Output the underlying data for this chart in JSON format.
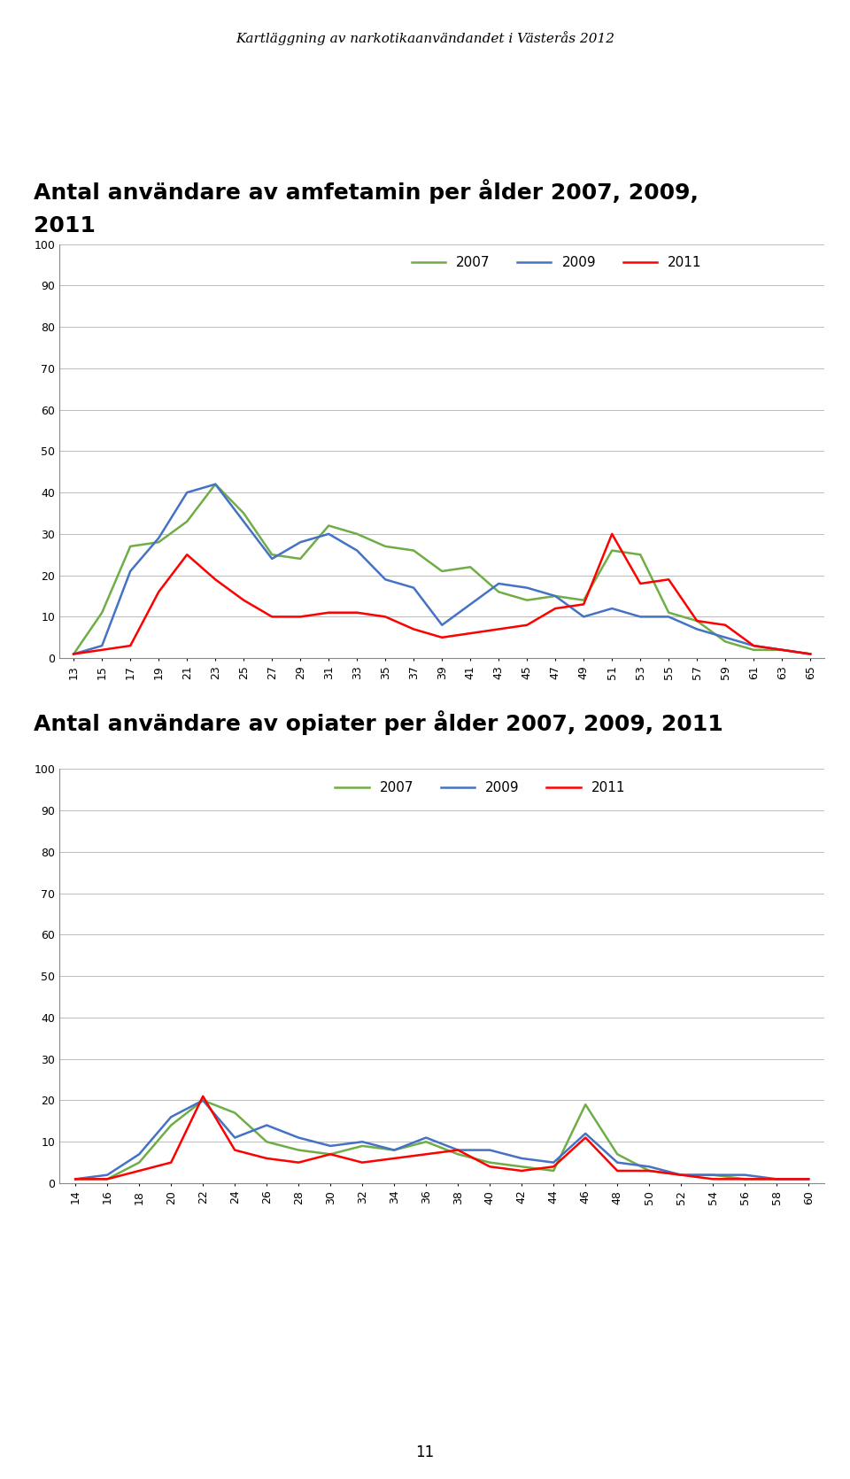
{
  "page_title": "Kartläggning av narkotikaanvändandet i Västerås 2012",
  "page_number": "11",
  "chart1": {
    "title_line1": "Antal användare av amfetamin per ålder 2007, 2009,",
    "title_line2": "2011",
    "ages": [
      13,
      15,
      17,
      19,
      21,
      23,
      25,
      27,
      29,
      31,
      33,
      35,
      37,
      39,
      41,
      43,
      45,
      47,
      49,
      51,
      53,
      55,
      57,
      59,
      61,
      63,
      65
    ],
    "y2007": [
      1,
      11,
      27,
      28,
      33,
      42,
      35,
      25,
      24,
      32,
      30,
      27,
      26,
      21,
      22,
      16,
      14,
      15,
      14,
      26,
      25,
      11,
      9,
      4,
      2,
      2,
      1
    ],
    "y2009": [
      1,
      3,
      21,
      29,
      40,
      42,
      33,
      24,
      28,
      30,
      26,
      19,
      17,
      8,
      13,
      18,
      17,
      15,
      10,
      12,
      10,
      10,
      7,
      5,
      3,
      2,
      1
    ],
    "y2011": [
      1,
      2,
      3,
      16,
      25,
      19,
      14,
      10,
      10,
      11,
      11,
      10,
      7,
      5,
      6,
      7,
      8,
      12,
      13,
      30,
      18,
      19,
      9,
      8,
      3,
      2,
      1
    ],
    "ylim": [
      0,
      100
    ],
    "yticks": [
      0,
      10,
      20,
      30,
      40,
      50,
      60,
      70,
      80,
      90,
      100
    ],
    "color2007": "#70AD47",
    "color2009": "#4472C4",
    "color2011": "#FF0000"
  },
  "chart2": {
    "title": "Antal användare av opiater per ålder 2007, 2009, 2011",
    "ages": [
      14,
      16,
      18,
      20,
      22,
      24,
      26,
      28,
      30,
      32,
      34,
      36,
      38,
      40,
      42,
      44,
      46,
      48,
      50,
      52,
      54,
      56,
      58,
      60
    ],
    "y2007": [
      1,
      1,
      5,
      14,
      20,
      17,
      10,
      8,
      7,
      9,
      8,
      10,
      7,
      5,
      4,
      3,
      19,
      7,
      3,
      2,
      2,
      1,
      1,
      1
    ],
    "y2009": [
      1,
      2,
      7,
      16,
      20,
      11,
      14,
      11,
      9,
      10,
      8,
      11,
      8,
      8,
      6,
      5,
      12,
      5,
      4,
      2,
      2,
      2,
      1,
      1
    ],
    "y2011": [
      1,
      1,
      3,
      5,
      21,
      8,
      6,
      5,
      7,
      5,
      6,
      7,
      8,
      4,
      3,
      4,
      11,
      3,
      3,
      2,
      1,
      1,
      1,
      1
    ],
    "ylim": [
      0,
      100
    ],
    "yticks": [
      0,
      10,
      20,
      30,
      40,
      50,
      60,
      70,
      80,
      90,
      100
    ],
    "color2007": "#70AD47",
    "color2009": "#4472C4",
    "color2011": "#FF0000"
  },
  "bg_color": "#FFFFFF",
  "page_title_fontsize": 11,
  "chart_title_fontsize": 18,
  "legend_fontsize": 11,
  "tick_fontsize": 9,
  "line_width": 1.8
}
